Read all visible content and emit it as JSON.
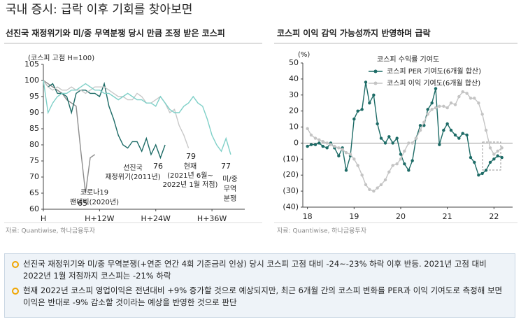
{
  "title": "국내 증시: 급락 이후 기회를 찾아보면",
  "chart_data": [
    {
      "type": "line",
      "title": "선진국 재정위기와 미/중 무역분쟁 당시 만큼 조정 받은 코스피",
      "y_label": "(코스피 고점 H=100)",
      "source": "자료: Quantiwise, 하나금융투자",
      "x": [
        0,
        1,
        2,
        3,
        4,
        5,
        6,
        7,
        8,
        9,
        10,
        11,
        12,
        13,
        14,
        15,
        16,
        17,
        18,
        19,
        20,
        21,
        22,
        23,
        24,
        25,
        26,
        27,
        28,
        29,
        30,
        31,
        32,
        33,
        34,
        35,
        36,
        37,
        38,
        39,
        40
      ],
      "xlim": [
        0,
        43
      ],
      "xticks": [
        {
          "value": 0,
          "label": "H"
        },
        {
          "value": 12,
          "label": "H+12W"
        },
        {
          "value": 24,
          "label": "H+24W"
        },
        {
          "value": 36,
          "label": "H+36W"
        }
      ],
      "ylim": [
        60,
        105
      ],
      "yticks": [
        60,
        65,
        70,
        75,
        80,
        85,
        90,
        95,
        100,
        105
      ],
      "grid": false,
      "series": [
        {
          "label": [
            "코로나19",
            "팬데믹(2020년)"
          ],
          "color": "#8c8c8c",
          "values": [
            100,
            99,
            98,
            97,
            96,
            94,
            93,
            92,
            78,
            65,
            76,
            77,
            null,
            null,
            null,
            null,
            null,
            null,
            null,
            null,
            null,
            null,
            null,
            null,
            null,
            null,
            null,
            null,
            null,
            null,
            null,
            null,
            null,
            null,
            null,
            null,
            null,
            null,
            null,
            null,
            null
          ]
        },
        {
          "label": [
            "선진국",
            "재정위기(2011년)"
          ],
          "color": "#1d6b66",
          "values": [
            100,
            98,
            99,
            96,
            96,
            95,
            90,
            96,
            97,
            97,
            96,
            96,
            95,
            99,
            92,
            88,
            83,
            80,
            79,
            81,
            81,
            78,
            82,
            77,
            80,
            76,
            80,
            null,
            null,
            null,
            null,
            null,
            null,
            null,
            null,
            null,
            null,
            null,
            null,
            null,
            null
          ]
        },
        {
          "label": [
            "현재",
            "(2021년 6월~",
            "2022년 1월 저점)"
          ],
          "color": "#c8c8c8",
          "values": [
            100,
            98,
            97,
            98,
            97,
            97,
            98,
            97,
            97,
            96,
            97,
            98,
            98,
            98,
            97,
            96,
            95,
            95,
            94,
            94,
            96,
            95,
            93,
            93,
            94,
            95,
            93,
            90,
            91,
            86,
            83,
            79,
            null,
            null,
            null,
            null,
            null,
            null,
            null,
            null,
            null
          ]
        },
        {
          "label": [
            "미/중",
            "무역",
            "분쟁"
          ],
          "color": "#7fd0c8",
          "values": [
            100,
            90,
            93,
            95,
            96,
            96,
            97,
            97,
            98,
            99,
            98,
            97,
            97,
            96,
            96,
            95,
            94,
            95,
            96,
            95,
            94,
            94,
            93,
            93,
            92,
            95,
            93,
            91,
            90,
            90,
            92,
            93,
            95,
            93,
            92,
            88,
            83,
            80,
            78,
            82,
            77
          ]
        }
      ]
    },
    {
      "type": "line",
      "title": "코스피 이익 감익 가능성까지 반영하며 급락",
      "y_label": "(%)",
      "source": "자료: Quantiwise, 하나금융투자",
      "legend_title": "코스피 수익률 기여도",
      "x": [
        18,
        18.08,
        18.17,
        18.25,
        18.33,
        18.42,
        18.5,
        18.58,
        18.67,
        18.75,
        18.83,
        18.92,
        19,
        19.08,
        19.17,
        19.25,
        19.33,
        19.42,
        19.5,
        19.58,
        19.67,
        19.75,
        19.83,
        19.92,
        20,
        20.08,
        20.17,
        20.25,
        20.33,
        20.42,
        20.5,
        20.58,
        20.67,
        20.75,
        20.83,
        20.92,
        21,
        21.08,
        21.17,
        21.25,
        21.33,
        21.42,
        21.5,
        21.58,
        21.67,
        21.75,
        21.83,
        21.92,
        22,
        22.08,
        22.17
      ],
      "xlim": [
        17.9,
        22.4
      ],
      "xticks": [
        18,
        19,
        20,
        21,
        22
      ],
      "ylim": [
        -40,
        50
      ],
      "yticks": [
        {
          "value": -40,
          "label": "(40)"
        },
        {
          "value": -30,
          "label": "(30)"
        },
        {
          "value": -20,
          "label": "(20)"
        },
        {
          "value": -10,
          "label": "(10)"
        },
        0,
        10,
        20,
        30,
        40,
        50
      ],
      "grid": false,
      "series": [
        {
          "name": "코스피 PER 기여도(6개월 합산)",
          "color": "#1d6b66",
          "values": [
            -2,
            -1,
            -1,
            0,
            -2,
            -3,
            0,
            -3,
            -8,
            -3,
            -17,
            -8,
            15,
            20,
            21,
            38,
            25,
            30,
            12,
            3,
            0,
            4,
            0,
            3,
            -7,
            -13,
            -17,
            -11,
            3,
            11,
            11,
            21,
            25,
            34,
            -1,
            8,
            12,
            8,
            5,
            3,
            6,
            5,
            -9,
            -12,
            -20,
            -19,
            -17,
            -12,
            -10,
            -8,
            -9
          ]
        },
        {
          "name": "코스피 이익 기여도(6개월 합산)",
          "color": "#c4c4c4",
          "values": [
            9,
            5,
            3,
            2,
            1,
            0,
            -1,
            -2,
            -3,
            -4,
            -6,
            -7,
            -10,
            -14,
            -20,
            -26,
            -29,
            -30,
            -28,
            -26,
            -23,
            -18,
            -14,
            -13,
            -10,
            -5,
            0,
            0,
            3,
            8,
            13,
            18,
            21,
            22,
            23,
            23,
            22,
            25,
            24,
            29,
            32,
            31,
            28,
            28,
            25,
            18,
            8,
            -3,
            -7,
            -5,
            -3
          ]
        }
      ]
    }
  ],
  "notes": [
    "선진국 재정위기와 미/중 무역분쟁(+연준 연간 4회 기준금리 인상) 당시 코스피 고점 대비 -24~-23% 하락 이후 반등. 2021년 고점 대비 2022년 1월 저점까지 코스피는 -21% 하락",
    "현재 2022년 코스피 영업이익은 전년대비 +9% 증가할 것으로 예상되지만, 최근 6개월 간의 코스피 변화를 PER과 이익 기여도로 측정해 보면 이익은 반대로 -9% 감소할 것이라는 예상을 반영한 것으로 판단"
  ]
}
